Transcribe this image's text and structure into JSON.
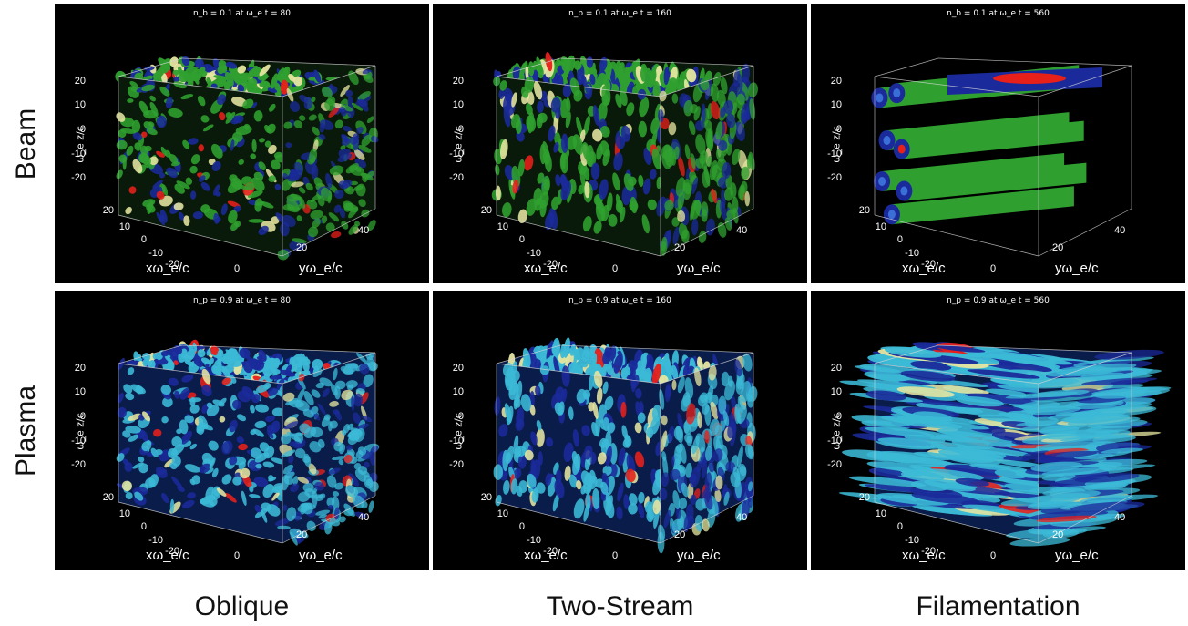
{
  "row_labels": [
    "Beam",
    "Plasma"
  ],
  "column_labels": [
    "Oblique",
    "Two-Stream",
    "Filamentation"
  ],
  "axis_labels": {
    "z": "ω_e z/c",
    "x": "xω_e/c",
    "y": "yω_e/c"
  },
  "z_ticks": [
    "20",
    "10",
    "0",
    "-10",
    "-20"
  ],
  "x_ticks": [
    "20",
    "10",
    "0",
    "-10",
    "-20"
  ],
  "y_ticks": [
    "0",
    "20",
    "40"
  ],
  "panels": [
    {
      "id": "beam-oblique",
      "title": "n_b = 0.1 at ω_e t = 80",
      "species": "Beam",
      "regime": "Oblique",
      "texture": "beam-blobs"
    },
    {
      "id": "beam-two-stream",
      "title": "n_b = 0.1 at ω_e t = 160",
      "species": "Beam",
      "regime": "Two-Stream",
      "texture": "beam-blobs"
    },
    {
      "id": "beam-filamentation",
      "title": "n_b = 0.1 at ω_e t = 560",
      "species": "Beam",
      "regime": "Filamentation",
      "texture": "beam-filaments"
    },
    {
      "id": "plasma-oblique",
      "title": "n_p = 0.9 at ω_e t = 80",
      "species": "Plasma",
      "regime": "Oblique",
      "texture": "plasma-blobs"
    },
    {
      "id": "plasma-two-stream",
      "title": "n_p = 0.9 at ω_e t = 160",
      "species": "Plasma",
      "regime": "Two-Stream",
      "texture": "plasma-blobs"
    },
    {
      "id": "plasma-filamentation",
      "title": "n_p = 0.9 at ω_e t = 560",
      "species": "Plasma",
      "regime": "Filamentation",
      "texture": "plasma-stripes"
    }
  ],
  "colors": {
    "panel_bg": "#000000",
    "beam_density": "#2fa02f",
    "plasma_density": "#3bb9d6",
    "contour_low": "#1a2a9a",
    "contour_high": "#e8201a",
    "box_edge": "#d8d8d8"
  }
}
